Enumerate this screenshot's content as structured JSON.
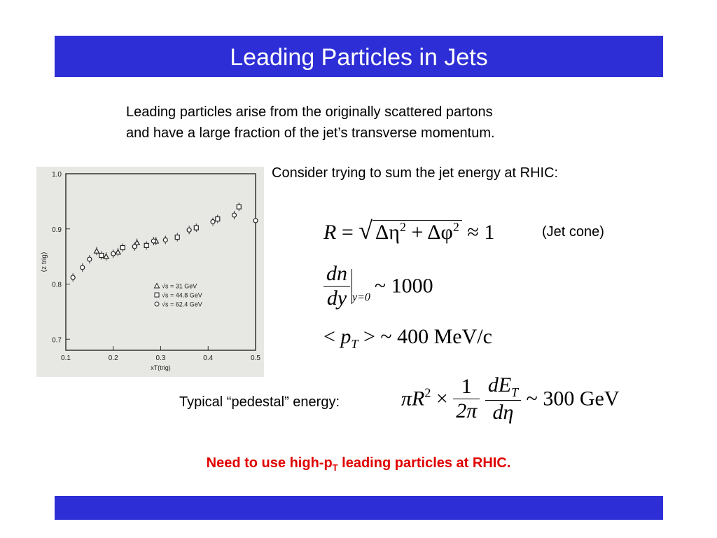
{
  "slide": {
    "title": "Leading Particles in Jets",
    "intro_line1": "Leading particles arise from the originally scattered partons",
    "intro_line2": "and have a large fraction of the jet’s transverse momentum.",
    "consider": "Consider trying to sum the jet energy at RHIC:",
    "jet_cone": "(Jet cone)",
    "pedestal_label": "Typical “pedestal” energy:",
    "conclusion_pre": "Need to use high-p",
    "conclusion_sub": "T",
    "conclusion_post": " leading particles at RHIC.",
    "colors": {
      "bar": "#2e2ed6",
      "conclusion": "#e00000"
    }
  },
  "equations": {
    "cone_R": "R",
    "cone_eq": "=",
    "cone_deta": "Δη",
    "cone_dphi": "Δφ",
    "cone_exp": "2",
    "cone_approx": "≈ 1",
    "dndy_num": "dn",
    "dndy_den": "dy",
    "dndy_cond": "y=0",
    "dndy_val": "~ 1000",
    "pt_open": "<",
    "pt_p": "p",
    "pt_sub": "T",
    "pt_close": "> ~ 400 MeV/c",
    "ped_piR": "πR",
    "ped_exp": "2",
    "ped_times": "×",
    "ped_one": "1",
    "ped_2pi": "2π",
    "ped_dE": "dE",
    "ped_sub": "T",
    "ped_deta": "dη",
    "ped_val": "~ 300 GeV"
  },
  "chart_data": {
    "type": "scatter",
    "title": "",
    "xlabel": "xT(trig)",
    "ylabel": "⟨z trig⟩",
    "xlim": [
      0.1,
      0.5
    ],
    "ylim": [
      0.68,
      1.0
    ],
    "xticks": [
      "0.1",
      "0.2",
      "0.3",
      "0.4",
      "0.5"
    ],
    "yticks": [
      "0.7",
      "0.8",
      "0.9",
      "1.0"
    ],
    "legend_position": "center-right",
    "series": [
      {
        "name": "√s = 31 GeV",
        "marker": "triangle",
        "points": [
          [
            0.165,
            0.86
          ],
          [
            0.185,
            0.85
          ],
          [
            0.21,
            0.858
          ],
          [
            0.25,
            0.875
          ],
          [
            0.29,
            0.878
          ]
        ]
      },
      {
        "name": "√s = 44.8 GeV",
        "marker": "square",
        "points": [
          [
            0.175,
            0.852
          ],
          [
            0.22,
            0.866
          ],
          [
            0.27,
            0.87
          ],
          [
            0.335,
            0.885
          ],
          [
            0.375,
            0.902
          ],
          [
            0.42,
            0.918
          ],
          [
            0.465,
            0.94
          ]
        ]
      },
      {
        "name": "√s = 62.4 GeV",
        "marker": "circle",
        "points": [
          [
            0.115,
            0.812
          ],
          [
            0.135,
            0.83
          ],
          [
            0.15,
            0.845
          ],
          [
            0.2,
            0.855
          ],
          [
            0.245,
            0.868
          ],
          [
            0.285,
            0.878
          ],
          [
            0.31,
            0.88
          ],
          [
            0.36,
            0.898
          ],
          [
            0.41,
            0.913
          ],
          [
            0.455,
            0.925
          ],
          [
            0.5,
            0.915
          ]
        ]
      }
    ]
  }
}
